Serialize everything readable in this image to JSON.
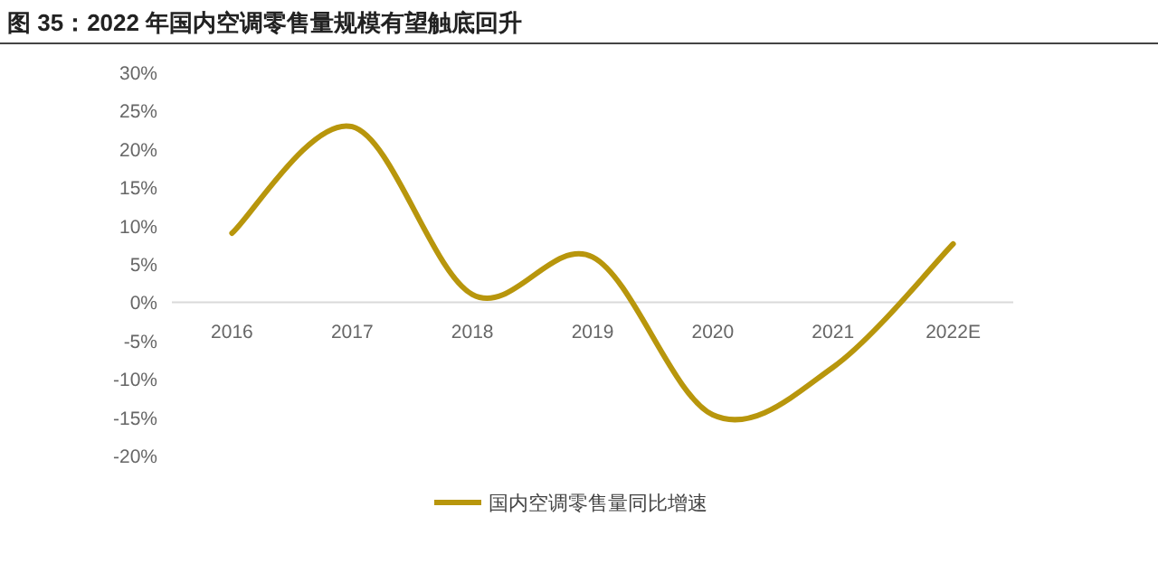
{
  "chart_data": {
    "type": "line",
    "title": "图 35：2022 年国内空调零售量规模有望触底回升",
    "categories": [
      "2016",
      "2017",
      "2018",
      "2019",
      "2020",
      "2021",
      "2022E"
    ],
    "series": [
      {
        "name": "国内空调零售量同比增速",
        "color": "#b8960c",
        "values": [
          9.0,
          22.9,
          1.0,
          5.9,
          -14.7,
          -8.5,
          7.6
        ]
      }
    ],
    "ylim": [
      -20,
      30
    ],
    "yticks": [
      {
        "value": -20,
        "label": "-20%"
      },
      {
        "value": -15,
        "label": "-15%"
      },
      {
        "value": -10,
        "label": "-10%"
      },
      {
        "value": -5,
        "label": "-5%"
      },
      {
        "value": 0,
        "label": "0%"
      },
      {
        "value": 5,
        "label": "5%"
      },
      {
        "value": 10,
        "label": "10%"
      },
      {
        "value": 15,
        "label": "15%"
      },
      {
        "value": 20,
        "label": "20%"
      },
      {
        "value": 25,
        "label": "25%"
      },
      {
        "value": 30,
        "label": "30%"
      }
    ],
    "grid": false,
    "legend": "bottom",
    "marker": "none",
    "line_style": "solid"
  }
}
